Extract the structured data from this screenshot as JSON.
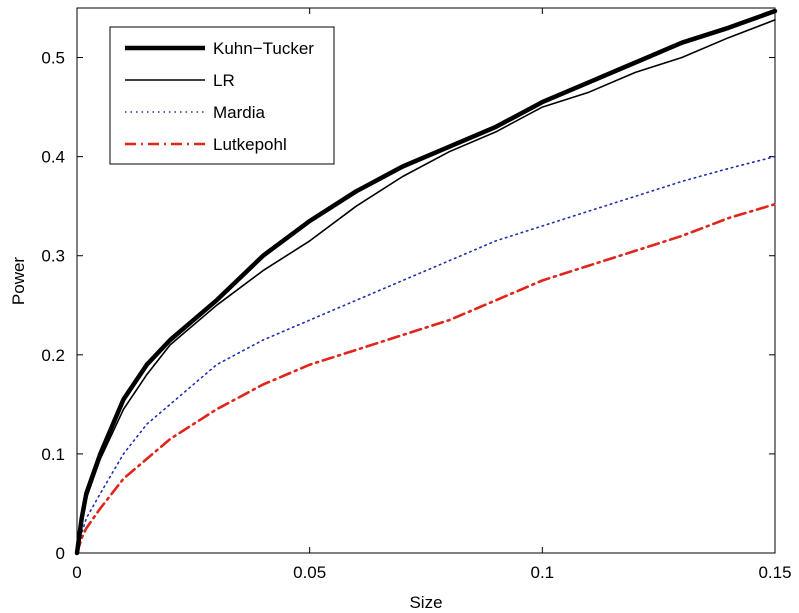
{
  "chart_data": {
    "type": "line",
    "xlabel": "Size",
    "ylabel": "Power",
    "xlim": [
      0,
      0.15
    ],
    "ylim": [
      0,
      0.55
    ],
    "xticks": [
      0,
      0.05,
      0.1,
      0.15
    ],
    "xtick_labels": [
      "0",
      "0.05",
      "0.1",
      "0.15"
    ],
    "yticks": [
      0,
      0.1,
      0.2,
      0.3,
      0.4,
      0.5
    ],
    "ytick_labels": [
      "0",
      "0.1",
      "0.2",
      "0.3",
      "0.4",
      "0.5"
    ],
    "grid": false,
    "legend_position": "top-left",
    "x": [
      0,
      0.001,
      0.002,
      0.005,
      0.01,
      0.015,
      0.02,
      0.03,
      0.04,
      0.05,
      0.06,
      0.07,
      0.08,
      0.09,
      0.1,
      0.11,
      0.12,
      0.13,
      0.14,
      0.15
    ],
    "series": [
      {
        "name": "Kuhn−Tucker",
        "color": "#000000",
        "style": "solid-thick",
        "values": [
          0.0,
          0.035,
          0.06,
          0.1,
          0.155,
          0.19,
          0.215,
          0.255,
          0.3,
          0.335,
          0.365,
          0.39,
          0.41,
          0.43,
          0.455,
          0.475,
          0.495,
          0.515,
          0.53,
          0.547
        ]
      },
      {
        "name": "LR",
        "color": "#000000",
        "style": "solid-thin",
        "values": [
          0.0,
          0.03,
          0.055,
          0.095,
          0.145,
          0.18,
          0.21,
          0.25,
          0.285,
          0.315,
          0.35,
          0.38,
          0.405,
          0.425,
          0.45,
          0.465,
          0.485,
          0.5,
          0.52,
          0.538
        ]
      },
      {
        "name": "Mardia",
        "color": "#1f2fb0",
        "style": "dotted",
        "values": [
          0.0,
          0.02,
          0.035,
          0.06,
          0.1,
          0.13,
          0.15,
          0.19,
          0.215,
          0.235,
          0.255,
          0.275,
          0.295,
          0.315,
          0.33,
          0.345,
          0.36,
          0.375,
          0.388,
          0.4
        ]
      },
      {
        "name": "Lutkepohl",
        "color": "#e0251b",
        "style": "dashdot",
        "values": [
          0.0,
          0.015,
          0.025,
          0.045,
          0.075,
          0.095,
          0.115,
          0.145,
          0.17,
          0.19,
          0.205,
          0.22,
          0.235,
          0.255,
          0.275,
          0.29,
          0.305,
          0.32,
          0.338,
          0.352
        ]
      }
    ]
  }
}
